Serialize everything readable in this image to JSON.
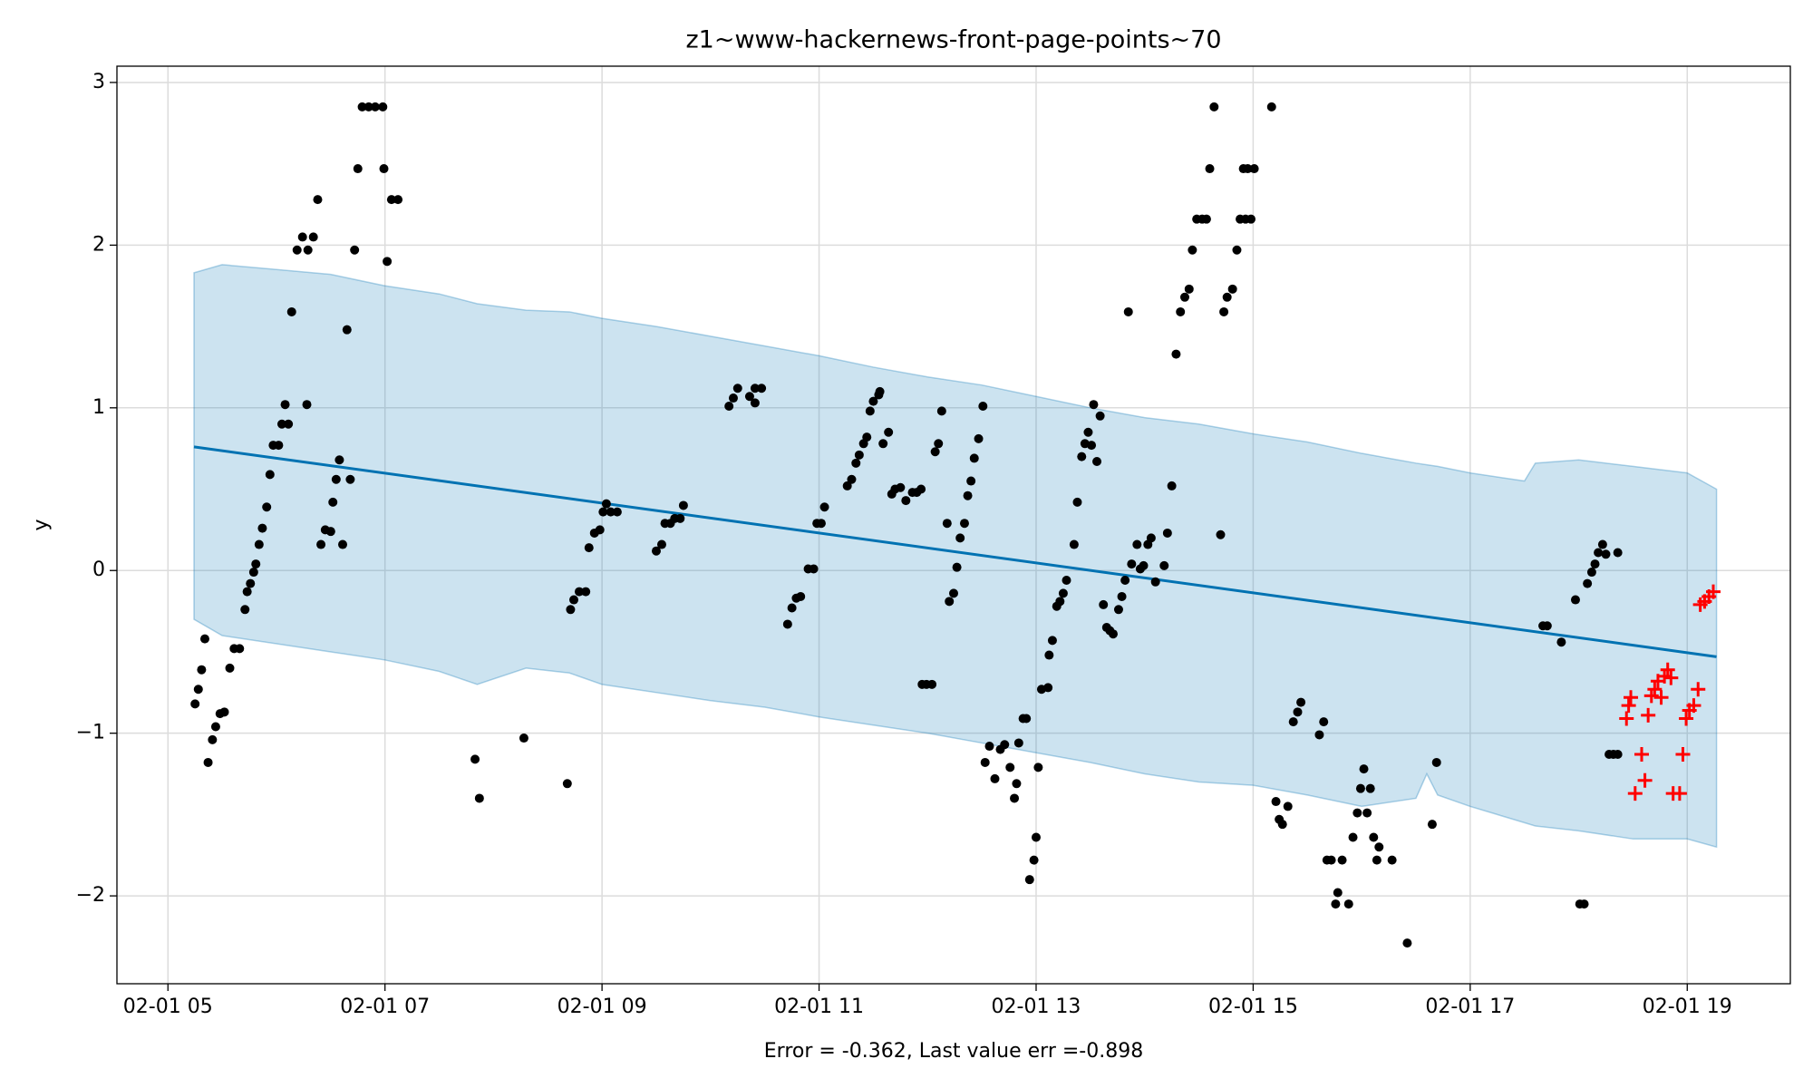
{
  "chart_data": {
    "type": "scatter",
    "title": "z1~www-hackernews-front-page-points~70",
    "xlabel": "Error = -0.362, Last value err =-0.898",
    "ylabel": "y",
    "xlim": [
      4.53,
      19.95
    ],
    "ylim": [
      -2.54,
      3.1
    ],
    "xticks": [
      {
        "value": 5,
        "label": "02-01 05"
      },
      {
        "value": 7,
        "label": "02-01 07"
      },
      {
        "value": 9,
        "label": "02-01 09"
      },
      {
        "value": 11,
        "label": "02-01 11"
      },
      {
        "value": 13,
        "label": "02-01 13"
      },
      {
        "value": 15,
        "label": "02-01 15"
      },
      {
        "value": 17,
        "label": "02-01 17"
      },
      {
        "value": 19,
        "label": "02-01 19"
      }
    ],
    "yticks": [
      {
        "value": -2,
        "label": "−2"
      },
      {
        "value": -1,
        "label": "−1"
      },
      0,
      1,
      2,
      3
    ],
    "grid": true,
    "band": {
      "color": "#0072b2",
      "opacity": 0.2,
      "x": [
        5.24,
        5.5,
        6.0,
        6.5,
        7.0,
        7.5,
        7.85,
        8.3,
        8.7,
        9.0,
        9.5,
        10.0,
        10.5,
        11.0,
        11.5,
        12.0,
        12.5,
        13.0,
        13.5,
        14.0,
        14.5,
        15.0,
        15.5,
        16.0,
        16.5,
        16.6,
        16.7,
        17.0,
        17.5,
        17.6,
        18.0,
        18.5,
        19.0,
        19.27
      ],
      "upper": [
        1.83,
        1.88,
        1.85,
        1.82,
        1.75,
        1.7,
        1.64,
        1.6,
        1.59,
        1.55,
        1.5,
        1.44,
        1.38,
        1.32,
        1.25,
        1.19,
        1.14,
        1.07,
        1.0,
        0.94,
        0.9,
        0.84,
        0.79,
        0.72,
        0.66,
        0.65,
        0.64,
        0.6,
        0.55,
        0.66,
        0.68,
        0.64,
        0.6,
        0.5
      ],
      "lower": [
        -0.3,
        -0.4,
        -0.45,
        -0.5,
        -0.55,
        -0.62,
        -0.7,
        -0.6,
        -0.63,
        -0.7,
        -0.75,
        -0.8,
        -0.84,
        -0.9,
        -0.95,
        -1.0,
        -1.06,
        -1.12,
        -1.18,
        -1.25,
        -1.3,
        -1.32,
        -1.38,
        -1.45,
        -1.4,
        -1.25,
        -1.38,
        -1.45,
        -1.55,
        -1.57,
        -1.6,
        -1.65,
        -1.65,
        -1.7
      ]
    },
    "series": [
      {
        "marker": "line",
        "color": "#0072b2",
        "x": [
          5.24,
          19.27
        ],
        "values": [
          0.76,
          -0.53
        ]
      },
      {
        "marker": "dot",
        "color": "#000000",
        "x": [
          5.25,
          5.28,
          5.31,
          5.34,
          5.37,
          5.41,
          5.44,
          5.48,
          5.52,
          5.57,
          5.61,
          5.66,
          5.71,
          5.73,
          5.76,
          5.79,
          5.81,
          5.84,
          5.87,
          5.91,
          5.94,
          5.97,
          6.02,
          6.05,
          6.08,
          6.11,
          6.14,
          6.19,
          6.24,
          6.29,
          6.34,
          6.38,
          6.28,
          6.41,
          6.45,
          6.5,
          6.52,
          6.55,
          6.58,
          6.61,
          6.65,
          6.68,
          6.72,
          6.75,
          6.79,
          6.85,
          6.91,
          6.98,
          6.99,
          7.02,
          7.06,
          7.12,
          7.83,
          7.87,
          8.28,
          8.68,
          8.71,
          8.74,
          8.79,
          8.85,
          8.88,
          8.93,
          8.98,
          9.01,
          9.04,
          9.08,
          9.14,
          9.5,
          9.55,
          9.58,
          9.63,
          9.67,
          9.72,
          9.75,
          10.17,
          10.21,
          10.25,
          10.36,
          10.41,
          10.41,
          10.47,
          10.71,
          10.75,
          10.79,
          10.83,
          10.9,
          10.95,
          10.98,
          11.02,
          11.05,
          11.26,
          11.3,
          11.34,
          11.37,
          11.41,
          11.44,
          11.47,
          11.5,
          11.55,
          11.56,
          11.59,
          11.64,
          11.67,
          11.7,
          11.75,
          11.8,
          11.86,
          11.9,
          11.94,
          11.95,
          11.99,
          12.04,
          12.07,
          12.1,
          12.13,
          12.18,
          12.2,
          12.24,
          12.27,
          12.3,
          12.34,
          12.37,
          12.4,
          12.43,
          12.47,
          12.51,
          12.53,
          12.57,
          12.62,
          12.67,
          12.71,
          12.76,
          12.8,
          12.82,
          12.84,
          12.88,
          12.91,
          12.94,
          12.98,
          13.0,
          13.02,
          13.05,
          13.11,
          13.12,
          13.15,
          13.19,
          13.22,
          13.25,
          13.28,
          13.35,
          13.38,
          13.42,
          13.45,
          13.48,
          13.51,
          13.53,
          13.56,
          13.59,
          13.62,
          13.65,
          13.68,
          13.71,
          13.76,
          13.79,
          13.82,
          13.85,
          13.88,
          13.93,
          13.96,
          13.99,
          14.03,
          14.06,
          14.1,
          14.18,
          14.21,
          14.25,
          14.29,
          14.33,
          14.37,
          14.41,
          14.44,
          14.48,
          14.53,
          14.57,
          14.6,
          14.64,
          14.7,
          14.73,
          14.76,
          14.81,
          14.85,
          14.88,
          14.93,
          14.98,
          14.91,
          14.95,
          15.01,
          15.17,
          15.21,
          15.24,
          15.27,
          15.32,
          15.37,
          15.41,
          15.44,
          15.61,
          15.65,
          15.68,
          15.72,
          15.76,
          15.78,
          15.82,
          15.88,
          15.92,
          15.96,
          15.99,
          16.02,
          16.05,
          16.08,
          16.11,
          16.14,
          16.16,
          16.28,
          16.42,
          16.65,
          16.69,
          17.67,
          17.71,
          17.84,
          17.97,
          18.01,
          18.05,
          18.08,
          18.12,
          18.15,
          18.18,
          18.22,
          18.25,
          18.28,
          18.32,
          18.36,
          18.36
        ],
        "values": [
          -0.82,
          -0.73,
          -0.61,
          -0.42,
          -1.18,
          -1.04,
          -0.96,
          -0.88,
          -0.87,
          -0.6,
          -0.48,
          -0.48,
          -0.24,
          -0.13,
          -0.08,
          -0.01,
          0.04,
          0.16,
          0.26,
          0.39,
          0.59,
          0.77,
          0.77,
          0.9,
          1.02,
          0.9,
          1.59,
          1.97,
          2.05,
          1.97,
          2.05,
          2.28,
          1.02,
          0.16,
          0.25,
          0.24,
          0.42,
          0.56,
          0.68,
          0.16,
          1.48,
          0.56,
          1.97,
          2.47,
          2.85,
          2.85,
          2.85,
          2.85,
          2.47,
          1.9,
          2.28,
          2.28,
          -1.16,
          -1.4,
          -1.03,
          -1.31,
          -0.24,
          -0.18,
          -0.13,
          -0.13,
          0.14,
          0.23,
          0.25,
          0.36,
          0.41,
          0.36,
          0.36,
          0.12,
          0.16,
          0.29,
          0.29,
          0.32,
          0.32,
          0.4,
          1.01,
          1.06,
          1.12,
          1.07,
          1.03,
          1.12,
          1.12,
          -0.33,
          -0.23,
          -0.17,
          -0.16,
          0.01,
          0.01,
          0.29,
          0.29,
          0.39,
          0.52,
          0.56,
          0.66,
          0.71,
          0.78,
          0.82,
          0.98,
          1.04,
          1.08,
          1.1,
          0.78,
          0.85,
          0.47,
          0.5,
          0.51,
          0.43,
          0.48,
          0.48,
          0.5,
          -0.7,
          -0.7,
          -0.7,
          0.73,
          0.78,
          0.98,
          0.29,
          -0.19,
          -0.14,
          0.02,
          0.2,
          0.29,
          0.46,
          0.55,
          0.69,
          0.81,
          1.01,
          -1.18,
          -1.08,
          -1.28,
          -1.1,
          -1.07,
          -1.21,
          -1.4,
          -1.31,
          -1.06,
          -0.91,
          -0.91,
          -1.9,
          -1.78,
          -1.64,
          -1.21,
          -0.73,
          -0.72,
          -0.52,
          -0.43,
          -0.22,
          -0.19,
          -0.14,
          -0.06,
          0.16,
          0.42,
          0.7,
          0.78,
          0.85,
          0.77,
          1.02,
          0.67,
          0.95,
          -0.21,
          -0.35,
          -0.37,
          -0.39,
          -0.24,
          -0.16,
          -0.06,
          1.59,
          0.04,
          0.16,
          0.01,
          0.03,
          0.16,
          0.2,
          -0.07,
          0.03,
          0.23,
          0.52,
          1.33,
          1.59,
          1.68,
          1.73,
          1.97,
          2.16,
          2.16,
          2.16,
          2.47,
          2.85,
          0.22,
          1.59,
          1.68,
          1.73,
          1.97,
          2.16,
          2.16,
          2.16,
          2.47,
          2.47,
          2.47,
          2.85,
          -1.42,
          -1.53,
          -1.56,
          -1.45,
          -0.93,
          -0.87,
          -0.81,
          -1.01,
          -0.93,
          -1.78,
          -1.78,
          -2.05,
          -1.98,
          -1.78,
          -2.05,
          -1.64,
          -1.49,
          -1.34,
          -1.22,
          -1.49,
          -1.34,
          -1.64,
          -1.78,
          -1.7,
          -1.78,
          -2.29,
          -1.56,
          -1.18,
          -0.34,
          -0.34,
          -0.44,
          -0.18,
          -2.05,
          -2.05,
          -0.08,
          -0.01,
          0.04,
          0.11,
          0.16,
          0.1,
          -1.13,
          -1.13,
          0.11,
          -1.13
        ]
      },
      {
        "marker": "plus",
        "color": "#ff0000",
        "x": [
          18.44,
          18.46,
          18.48,
          18.52,
          18.58,
          18.61,
          18.64,
          18.67,
          18.7,
          18.73,
          18.76,
          18.79,
          18.82,
          18.85,
          18.87,
          18.93,
          18.96,
          18.99,
          19.02,
          19.06,
          19.1,
          19.12,
          19.16,
          19.2,
          19.24
        ],
        "values": [
          -0.91,
          -0.83,
          -0.78,
          -1.37,
          -1.13,
          -1.29,
          -0.89,
          -0.77,
          -0.73,
          -0.68,
          -0.78,
          -0.65,
          -0.61,
          -0.66,
          -1.37,
          -1.37,
          -1.13,
          -0.91,
          -0.86,
          -0.83,
          -0.73,
          -0.21,
          -0.19,
          -0.16,
          -0.13
        ]
      }
    ]
  }
}
